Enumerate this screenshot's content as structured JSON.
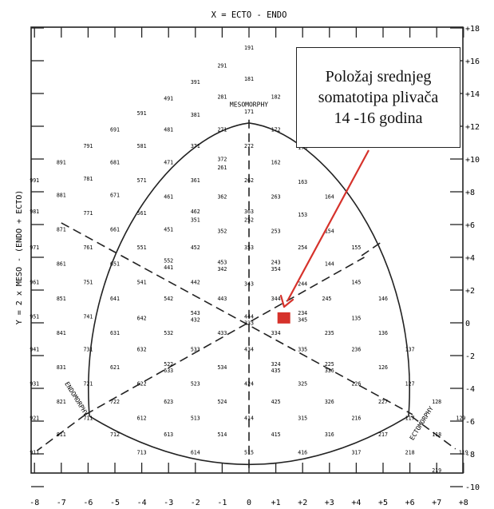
{
  "chart_data": {
    "type": "scatter",
    "title": "X = ECTO - ENDO",
    "xlabel": "",
    "ylabel": "Y = 2 x MESO - (ENDO + ECTO)",
    "xlim": [
      -8,
      8
    ],
    "ylim": [
      -10,
      18
    ],
    "x_ticks": [
      "-8",
      "-7",
      "-6",
      "-5",
      "-4",
      "-3",
      "-2",
      "-1",
      "0",
      "+1",
      "+2",
      "+3",
      "+4",
      "+5",
      "+6",
      "+7",
      "+8"
    ],
    "y_ticks": [
      "+18",
      "+16",
      "+14",
      "+12",
      "+10",
      "+8",
      "+6",
      "+4",
      "+2",
      "0",
      "-2",
      "-4",
      "-6",
      "-8",
      "-10"
    ],
    "region_labels": [
      "MESOMORPHY",
      "ENDOMORPHY",
      "ECTOMORPHY"
    ],
    "somatotype_codes": [
      {
        "code": "191",
        "x": 0,
        "y": 16.8
      },
      {
        "code": "291",
        "x": -1,
        "y": 15.7
      },
      {
        "code": "181",
        "x": 0,
        "y": 14.9
      },
      {
        "code": "391",
        "x": -2,
        "y": 14.7
      },
      {
        "code": "491",
        "x": -3,
        "y": 13.7
      },
      {
        "code": "281",
        "x": -1,
        "y": 13.8
      },
      {
        "code": "182",
        "x": 1,
        "y": 13.8
      },
      {
        "code": "591",
        "x": -4,
        "y": 12.8
      },
      {
        "code": "381",
        "x": -2,
        "y": 12.7
      },
      {
        "code": "171",
        "x": 0,
        "y": 12.9
      },
      {
        "code": "691",
        "x": -5,
        "y": 11.8
      },
      {
        "code": "481",
        "x": -3,
        "y": 11.8
      },
      {
        "code": "271",
        "x": -1,
        "y": 11.8
      },
      {
        "code": "172",
        "x": 1,
        "y": 11.8
      },
      {
        "code": "791",
        "x": -6,
        "y": 10.8
      },
      {
        "code": "581",
        "x": -4,
        "y": 10.8
      },
      {
        "code": "371",
        "x": -2,
        "y": 10.8
      },
      {
        "code": "272",
        "x": 0,
        "y": 10.8
      },
      {
        "code": "173",
        "x": 2,
        "y": 10.7
      },
      {
        "code": "891",
        "x": -7,
        "y": 9.8
      },
      {
        "code": "681",
        "x": -5,
        "y": 9.8
      },
      {
        "code": "471",
        "x": -3,
        "y": 9.8
      },
      {
        "code": "372",
        "x": -1,
        "y": 10.0
      },
      {
        "code": "261",
        "x": -1,
        "y": 9.5
      },
      {
        "code": "162",
        "x": 1,
        "y": 9.8
      },
      {
        "code": "991",
        "x": -8,
        "y": 8.7
      },
      {
        "code": "781",
        "x": -6,
        "y": 8.8
      },
      {
        "code": "571",
        "x": -4,
        "y": 8.7
      },
      {
        "code": "361",
        "x": -2,
        "y": 8.7
      },
      {
        "code": "262",
        "x": 0,
        "y": 8.7
      },
      {
        "code": "163",
        "x": 2,
        "y": 8.6
      },
      {
        "code": "881",
        "x": -7,
        "y": 7.8
      },
      {
        "code": "671",
        "x": -5,
        "y": 7.8
      },
      {
        "code": "461",
        "x": -3,
        "y": 7.7
      },
      {
        "code": "362",
        "x": -1,
        "y": 7.7
      },
      {
        "code": "263",
        "x": 1,
        "y": 7.7
      },
      {
        "code": "164",
        "x": 3,
        "y": 7.7
      },
      {
        "code": "981",
        "x": -8,
        "y": 6.8
      },
      {
        "code": "771",
        "x": -6,
        "y": 6.7
      },
      {
        "code": "561",
        "x": -4,
        "y": 6.7
      },
      {
        "code": "462",
        "x": -2,
        "y": 6.8
      },
      {
        "code": "351",
        "x": -2,
        "y": 6.3
      },
      {
        "code": "363",
        "x": 0,
        "y": 6.8
      },
      {
        "code": "252",
        "x": 0,
        "y": 6.3
      },
      {
        "code": "153",
        "x": 2,
        "y": 6.6
      },
      {
        "code": "871",
        "x": -7,
        "y": 5.7
      },
      {
        "code": "661",
        "x": -5,
        "y": 5.7
      },
      {
        "code": "451",
        "x": -3,
        "y": 5.7
      },
      {
        "code": "352",
        "x": -1,
        "y": 5.6
      },
      {
        "code": "253",
        "x": 1,
        "y": 5.6
      },
      {
        "code": "154",
        "x": 3,
        "y": 5.6
      },
      {
        "code": "971",
        "x": -8,
        "y": 4.6
      },
      {
        "code": "761",
        "x": -6,
        "y": 4.6
      },
      {
        "code": "551",
        "x": -4,
        "y": 4.6
      },
      {
        "code": "452",
        "x": -2,
        "y": 4.6
      },
      {
        "code": "353",
        "x": 0,
        "y": 4.6
      },
      {
        "code": "254",
        "x": 2,
        "y": 4.6
      },
      {
        "code": "155",
        "x": 4,
        "y": 4.6
      },
      {
        "code": "861",
        "x": -7,
        "y": 3.6
      },
      {
        "code": "651",
        "x": -5,
        "y": 3.6
      },
      {
        "code": "552",
        "x": -3,
        "y": 3.8
      },
      {
        "code": "441",
        "x": -3,
        "y": 3.4
      },
      {
        "code": "453",
        "x": -1,
        "y": 3.7
      },
      {
        "code": "342",
        "x": -1,
        "y": 3.3
      },
      {
        "code": "243",
        "x": 1,
        "y": 3.7
      },
      {
        "code": "354",
        "x": 1,
        "y": 3.3
      },
      {
        "code": "144",
        "x": 3,
        "y": 3.6
      },
      {
        "code": "961",
        "x": -8,
        "y": 2.5
      },
      {
        "code": "751",
        "x": -6,
        "y": 2.5
      },
      {
        "code": "541",
        "x": -4,
        "y": 2.5
      },
      {
        "code": "442",
        "x": -2,
        "y": 2.5
      },
      {
        "code": "343",
        "x": 0,
        "y": 2.4
      },
      {
        "code": "244",
        "x": 2,
        "y": 2.4
      },
      {
        "code": "145",
        "x": 4,
        "y": 2.5
      },
      {
        "code": "851",
        "x": -7,
        "y": 1.5
      },
      {
        "code": "641",
        "x": -5,
        "y": 1.5
      },
      {
        "code": "542",
        "x": -3,
        "y": 1.5
      },
      {
        "code": "443",
        "x": -1,
        "y": 1.5
      },
      {
        "code": "344",
        "x": 1,
        "y": 1.5
      },
      {
        "code": "245",
        "x": 2.9,
        "y": 1.5
      },
      {
        "code": "146",
        "x": 5,
        "y": 1.5
      },
      {
        "code": "951",
        "x": -8,
        "y": 0.4
      },
      {
        "code": "741",
        "x": -6,
        "y": 0.4
      },
      {
        "code": "642",
        "x": -4,
        "y": 0.3
      },
      {
        "code": "543",
        "x": -2,
        "y": 0.6
      },
      {
        "code": "432",
        "x": -2,
        "y": 0.2
      },
      {
        "code": "444",
        "x": 0,
        "y": 0.4
      },
      {
        "code": "333",
        "x": 0,
        "y": 0.0
      },
      {
        "code": "234",
        "x": 2,
        "y": 0.6
      },
      {
        "code": "345",
        "x": 2,
        "y": 0.2
      },
      {
        "code": "135",
        "x": 4,
        "y": 0.3
      },
      {
        "code": "841",
        "x": -7,
        "y": -0.6
      },
      {
        "code": "631",
        "x": -5,
        "y": -0.6
      },
      {
        "code": "532",
        "x": -3,
        "y": -0.6
      },
      {
        "code": "433",
        "x": -1,
        "y": -0.6
      },
      {
        "code": "334",
        "x": 1,
        "y": -0.6
      },
      {
        "code": "235",
        "x": 3,
        "y": -0.6
      },
      {
        "code": "136",
        "x": 5,
        "y": -0.6
      },
      {
        "code": "941",
        "x": -8,
        "y": -1.6
      },
      {
        "code": "731",
        "x": -6,
        "y": -1.6
      },
      {
        "code": "632",
        "x": -4,
        "y": -1.6
      },
      {
        "code": "533",
        "x": -2,
        "y": -1.6
      },
      {
        "code": "434",
        "x": 0,
        "y": -1.6
      },
      {
        "code": "335",
        "x": 2,
        "y": -1.6
      },
      {
        "code": "236",
        "x": 4,
        "y": -1.6
      },
      {
        "code": "137",
        "x": 6,
        "y": -1.6
      },
      {
        "code": "831",
        "x": -7,
        "y": -2.7
      },
      {
        "code": "621",
        "x": -5,
        "y": -2.7
      },
      {
        "code": "522",
        "x": -3,
        "y": -2.5
      },
      {
        "code": "633",
        "x": -3,
        "y": -2.9
      },
      {
        "code": "534",
        "x": -1,
        "y": -2.7
      },
      {
        "code": "324",
        "x": 1,
        "y": -2.5
      },
      {
        "code": "435",
        "x": 1,
        "y": -2.9
      },
      {
        "code": "225",
        "x": 3,
        "y": -2.5
      },
      {
        "code": "336",
        "x": 3,
        "y": -2.9
      },
      {
        "code": "126",
        "x": 5,
        "y": -2.7
      },
      {
        "code": "931",
        "x": -8,
        "y": -3.7
      },
      {
        "code": "721",
        "x": -6,
        "y": -3.7
      },
      {
        "code": "622",
        "x": -4,
        "y": -3.7
      },
      {
        "code": "523",
        "x": -2,
        "y": -3.7
      },
      {
        "code": "424",
        "x": 0,
        "y": -3.7
      },
      {
        "code": "325",
        "x": 2,
        "y": -3.7
      },
      {
        "code": "226",
        "x": 4,
        "y": -3.7
      },
      {
        "code": "127",
        "x": 6,
        "y": -3.7
      },
      {
        "code": "821",
        "x": -7,
        "y": -4.8
      },
      {
        "code": "722",
        "x": -5,
        "y": -4.8
      },
      {
        "code": "623",
        "x": -3,
        "y": -4.8
      },
      {
        "code": "524",
        "x": -1,
        "y": -4.8
      },
      {
        "code": "425",
        "x": 1,
        "y": -4.8
      },
      {
        "code": "326",
        "x": 3,
        "y": -4.8
      },
      {
        "code": "227",
        "x": 5,
        "y": -4.8
      },
      {
        "code": "128",
        "x": 7,
        "y": -4.8
      },
      {
        "code": "921",
        "x": -8,
        "y": -5.8
      },
      {
        "code": "711",
        "x": -6,
        "y": -5.8
      },
      {
        "code": "612",
        "x": -4,
        "y": -5.8
      },
      {
        "code": "513",
        "x": -2,
        "y": -5.8
      },
      {
        "code": "414",
        "x": 0,
        "y": -5.8
      },
      {
        "code": "315",
        "x": 2,
        "y": -5.8
      },
      {
        "code": "216",
        "x": 4,
        "y": -5.8
      },
      {
        "code": "117",
        "x": 6,
        "y": -5.8
      },
      {
        "code": "129",
        "x": 7.9,
        "y": -5.8
      },
      {
        "code": "811",
        "x": -7,
        "y": -6.8
      },
      {
        "code": "712",
        "x": -5,
        "y": -6.8
      },
      {
        "code": "613",
        "x": -3,
        "y": -6.8
      },
      {
        "code": "514",
        "x": -1,
        "y": -6.8
      },
      {
        "code": "415",
        "x": 1,
        "y": -6.8
      },
      {
        "code": "316",
        "x": 3,
        "y": -6.8
      },
      {
        "code": "217",
        "x": 5,
        "y": -6.8
      },
      {
        "code": "118",
        "x": 7,
        "y": -6.8
      },
      {
        "code": "911",
        "x": -8,
        "y": -7.9
      },
      {
        "code": "713",
        "x": -4,
        "y": -7.9
      },
      {
        "code": "614",
        "x": -2,
        "y": -7.9
      },
      {
        "code": "515",
        "x": 0,
        "y": -7.9
      },
      {
        "code": "416",
        "x": 2,
        "y": -7.9
      },
      {
        "code": "317",
        "x": 4,
        "y": -7.9
      },
      {
        "code": "218",
        "x": 6,
        "y": -7.9
      },
      {
        "code": "119",
        "x": 8,
        "y": -7.9
      },
      {
        "code": "219",
        "x": 7,
        "y": -9.0
      }
    ],
    "highlight_point": {
      "x": 1.3,
      "y": 0.3,
      "color": "#d6322b"
    },
    "annotation": {
      "lines": [
        "Položaj srednjeg",
        "somatotipa plivača",
        "14 -16 godina"
      ]
    },
    "arrow_color": "#d6322b",
    "grid": false
  }
}
